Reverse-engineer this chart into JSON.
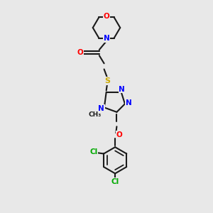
{
  "background_color": "#e8e8e8",
  "bond_color": "#1a1a1a",
  "atom_colors": {
    "O": "#ff0000",
    "N": "#0000ff",
    "S": "#ccaa00",
    "Cl": "#00aa00",
    "C": "#1a1a1a"
  },
  "figsize": [
    3.0,
    3.0
  ],
  "dpi": 100,
  "xlim": [
    0,
    10
  ],
  "ylim": [
    0,
    13
  ]
}
